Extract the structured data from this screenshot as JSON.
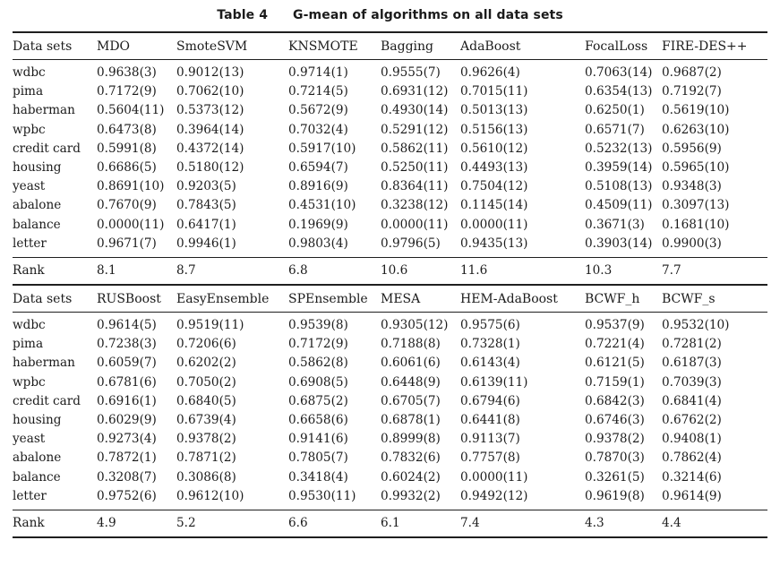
{
  "caption": {
    "label": "Table 4",
    "text": "G-mean of algorithms on all data sets"
  },
  "colors": {
    "text": "#1b1b1b",
    "rule": "#1f1f1f",
    "background": "#ffffff"
  },
  "tables": [
    {
      "headers": [
        "Data sets",
        "MDO",
        "SmoteSVM",
        "KNSMOTE",
        "Bagging",
        "AdaBoost",
        "FocalLoss",
        "FIRE-DES++"
      ],
      "rows": [
        {
          "name": "wdbc",
          "values": [
            "0.9638(3)",
            "0.9012(13)",
            "0.9714(1)",
            "0.9555(7)",
            "0.9626(4)",
            "0.7063(14)",
            "0.9687(2)"
          ]
        },
        {
          "name": "pima",
          "values": [
            "0.7172(9)",
            "0.7062(10)",
            "0.7214(5)",
            "0.6931(12)",
            "0.7015(11)",
            "0.6354(13)",
            "0.7192(7)"
          ]
        },
        {
          "name": "haberman",
          "values": [
            "0.5604(11)",
            "0.5373(12)",
            "0.5672(9)",
            "0.4930(14)",
            "0.5013(13)",
            "0.6250(1)",
            "0.5619(10)"
          ]
        },
        {
          "name": "wpbc",
          "values": [
            "0.6473(8)",
            "0.3964(14)",
            "0.7032(4)",
            "0.5291(12)",
            "0.5156(13)",
            "0.6571(7)",
            "0.6263(10)"
          ]
        },
        {
          "name": "credit card",
          "values": [
            "0.5991(8)",
            "0.4372(14)",
            "0.5917(10)",
            "0.5862(11)",
            "0.5610(12)",
            "0.5232(13)",
            "0.5956(9)"
          ]
        },
        {
          "name": "housing",
          "values": [
            "0.6686(5)",
            "0.5180(12)",
            "0.6594(7)",
            "0.5250(11)",
            "0.4493(13)",
            "0.3959(14)",
            "0.5965(10)"
          ]
        },
        {
          "name": "yeast",
          "values": [
            "0.8691(10)",
            "0.9203(5)",
            "0.8916(9)",
            "0.8364(11)",
            "0.7504(12)",
            "0.5108(13)",
            "0.9348(3)"
          ]
        },
        {
          "name": "abalone",
          "values": [
            "0.7670(9)",
            "0.7843(5)",
            "0.4531(10)",
            "0.3238(12)",
            "0.1145(14)",
            "0.4509(11)",
            "0.3097(13)"
          ]
        },
        {
          "name": "balance",
          "values": [
            "0.0000(11)",
            "0.6417(1)",
            "0.1969(9)",
            "0.0000(11)",
            "0.0000(11)",
            "0.3671(3)",
            "0.1681(10)"
          ]
        },
        {
          "name": "letter",
          "values": [
            "0.9671(7)",
            "0.9946(1)",
            "0.9803(4)",
            "0.9796(5)",
            "0.9435(13)",
            "0.3903(14)",
            "0.9900(3)"
          ]
        }
      ],
      "rank_label": "Rank",
      "rank_values": [
        "8.1",
        "8.7",
        "6.8",
        "10.6",
        "11.6",
        "10.3",
        "7.7"
      ]
    },
    {
      "headers": [
        "Data sets",
        "RUSBoost",
        "EasyEnsemble",
        "SPEnsemble",
        "MESA",
        "HEM-AdaBoost",
        "BCWF_h",
        "BCWF_s"
      ],
      "rows": [
        {
          "name": "wdbc",
          "values": [
            "0.9614(5)",
            "0.9519(11)",
            "0.9539(8)",
            "0.9305(12)",
            "0.9575(6)",
            "0.9537(9)",
            "0.9532(10)"
          ]
        },
        {
          "name": "pima",
          "values": [
            "0.7238(3)",
            "0.7206(6)",
            "0.7172(9)",
            "0.7188(8)",
            "0.7328(1)",
            "0.7221(4)",
            "0.7281(2)"
          ]
        },
        {
          "name": "haberman",
          "values": [
            "0.6059(7)",
            "0.6202(2)",
            "0.5862(8)",
            "0.6061(6)",
            "0.6143(4)",
            "0.6121(5)",
            "0.6187(3)"
          ]
        },
        {
          "name": "wpbc",
          "values": [
            "0.6781(6)",
            "0.7050(2)",
            "0.6908(5)",
            "0.6448(9)",
            "0.6139(11)",
            "0.7159(1)",
            "0.7039(3)"
          ]
        },
        {
          "name": "credit card",
          "values": [
            "0.6916(1)",
            "0.6840(5)",
            "0.6875(2)",
            "0.6705(7)",
            "0.6794(6)",
            "0.6842(3)",
            "0.6841(4)"
          ]
        },
        {
          "name": "housing",
          "values": [
            "0.6029(9)",
            "0.6739(4)",
            "0.6658(6)",
            "0.6878(1)",
            "0.6441(8)",
            "0.6746(3)",
            "0.6762(2)"
          ]
        },
        {
          "name": "yeast",
          "values": [
            "0.9273(4)",
            "0.9378(2)",
            "0.9141(6)",
            "0.8999(8)",
            "0.9113(7)",
            "0.9378(2)",
            "0.9408(1)"
          ]
        },
        {
          "name": "abalone",
          "values": [
            "0.7872(1)",
            "0.7871(2)",
            "0.7805(7)",
            "0.7832(6)",
            "0.7757(8)",
            "0.7870(3)",
            "0.7862(4)"
          ]
        },
        {
          "name": "balance",
          "values": [
            "0.3208(7)",
            "0.3086(8)",
            "0.3418(4)",
            "0.6024(2)",
            "0.0000(11)",
            "0.3261(5)",
            "0.3214(6)"
          ]
        },
        {
          "name": "letter",
          "values": [
            "0.9752(6)",
            "0.9612(10)",
            "0.9530(11)",
            "0.9932(2)",
            "0.9492(12)",
            "0.9619(8)",
            "0.9614(9)"
          ]
        }
      ],
      "rank_label": "Rank",
      "rank_values": [
        "4.9",
        "5.2",
        "6.6",
        "6.1",
        "7.4",
        "4.3",
        "4.4"
      ]
    }
  ]
}
